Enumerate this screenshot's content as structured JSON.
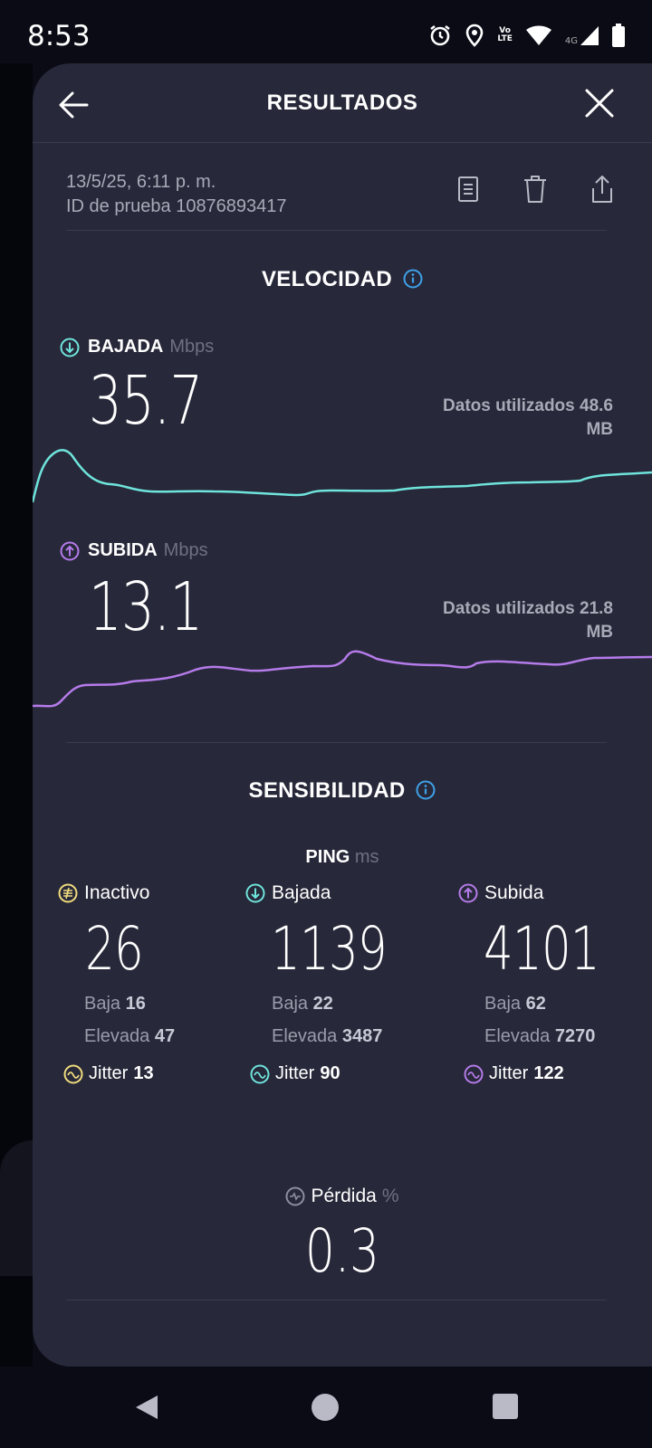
{
  "status_bar": {
    "time": "8:53",
    "lte_top": "Vo",
    "lte_bottom": "LTE",
    "network": "4G"
  },
  "header": {
    "title": "RESULTADOS",
    "back_icon": "arrow-left-icon",
    "close_icon": "close-icon"
  },
  "meta": {
    "date": "13/5/25, 6:11 p. m.",
    "test_id": "ID de prueba 10876893417",
    "actions": [
      "document-icon",
      "trash-icon",
      "share-icon"
    ]
  },
  "velocidad": {
    "title": "VELOCIDAD",
    "download": {
      "label": "BAJADA",
      "unit": "Mbps",
      "value": "35.7",
      "data_line1": "Datos utilizados 48.6",
      "data_line2": "MB",
      "color": "#6fe4dc"
    },
    "upload": {
      "label": "SUBIDA",
      "unit": "Mbps",
      "value": "13.1",
      "data_line1": "Datos utilizados 21.8",
      "data_line2": "MB",
      "color": "#b57bea"
    }
  },
  "sensibilidad": {
    "title": "SENSIBILIDAD",
    "ping_label": "PING",
    "ping_unit": "ms",
    "idle": {
      "label": "Inactivo",
      "value": "26",
      "low_label": "Baja",
      "low": "16",
      "high_label": "Elevada",
      "high": "47",
      "jitter_label": "Jitter",
      "jitter": "13",
      "color": "#f1dc7e"
    },
    "download": {
      "label": "Bajada",
      "value": "1139",
      "low_label": "Baja",
      "low": "22",
      "high_label": "Elevada",
      "high": "3487",
      "jitter_label": "Jitter",
      "jitter": "90",
      "color": "#6fe4dc"
    },
    "upload": {
      "label": "Subida",
      "value": "4101",
      "low_label": "Baja",
      "low": "62",
      "high_label": "Elevada",
      "high": "7270",
      "jitter_label": "Jitter",
      "jitter": "122",
      "color": "#b57bea"
    },
    "loss": {
      "label": "Pérdida",
      "unit": "%",
      "value": "0.3"
    }
  },
  "colors": {
    "panel": "#272839",
    "background": "#0b0b16",
    "accent_info": "#3ea2e8"
  }
}
